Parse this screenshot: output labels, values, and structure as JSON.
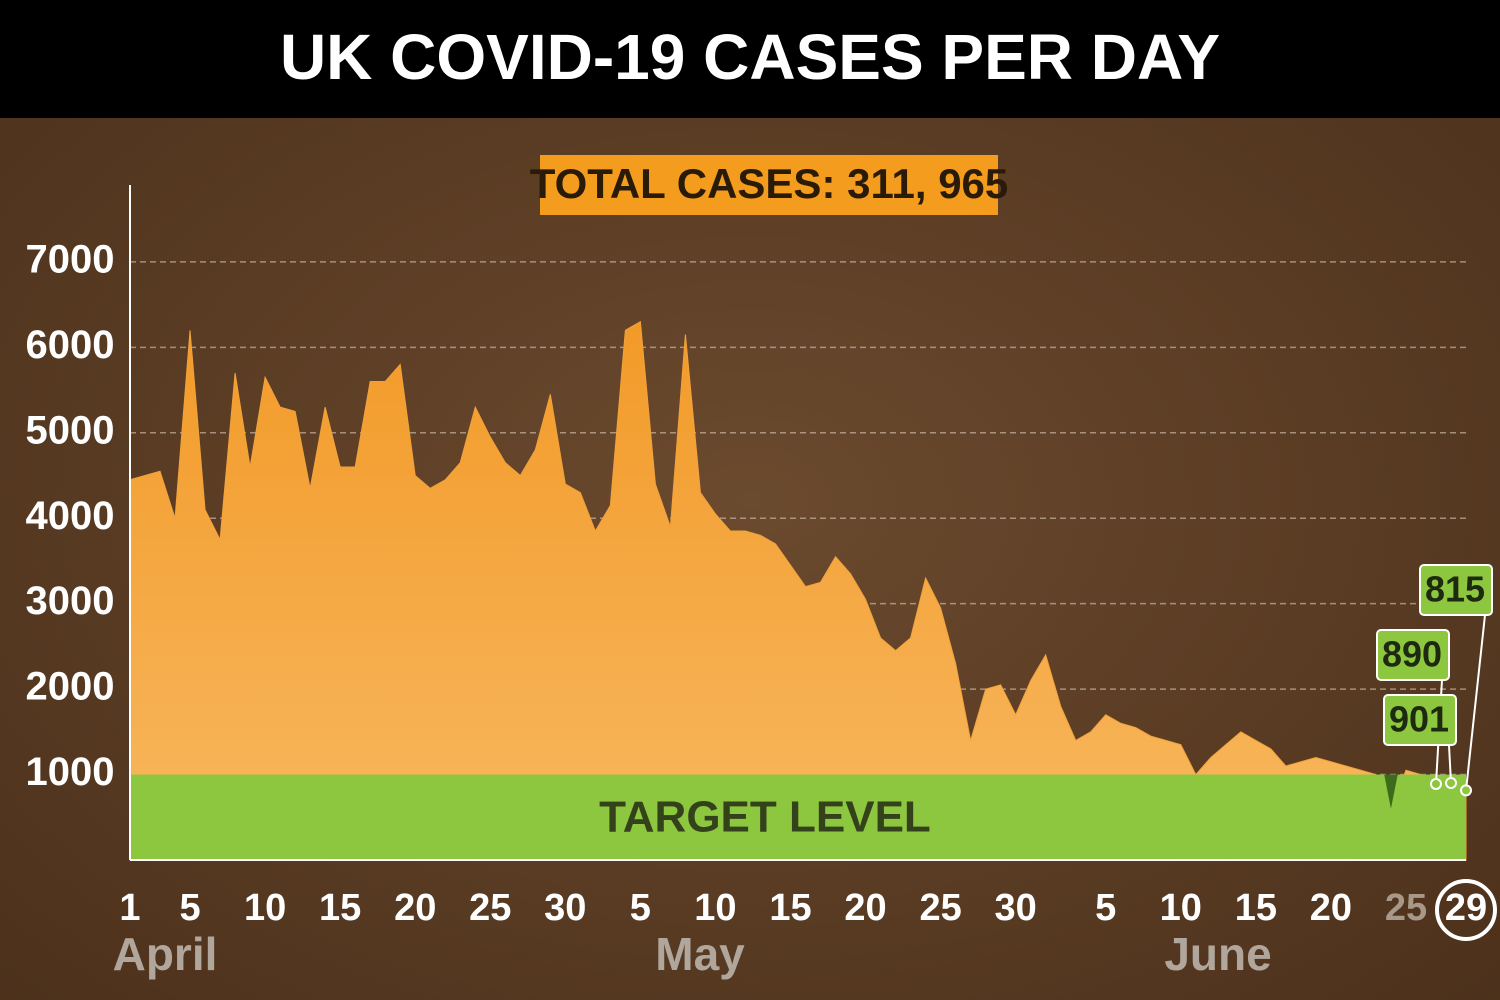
{
  "chart_data": {
    "type": "area",
    "title": "UK COVID-19 CASES PER DAY",
    "subtitle": "TOTAL CASES: 311, 965",
    "target_label": "TARGET LEVEL",
    "target": 1000,
    "months": [
      "April",
      "May",
      "June"
    ],
    "categories": [
      "1",
      null,
      null,
      null,
      "5",
      null,
      null,
      null,
      null,
      "10",
      null,
      null,
      null,
      null,
      "15",
      null,
      null,
      null,
      null,
      "20",
      null,
      null,
      null,
      null,
      "25",
      null,
      null,
      null,
      null,
      "30",
      null,
      null,
      null,
      null,
      "5",
      null,
      null,
      null,
      null,
      "10",
      null,
      null,
      null,
      null,
      "15",
      null,
      null,
      null,
      null,
      "20",
      null,
      null,
      null,
      null,
      "25",
      null,
      null,
      null,
      null,
      "30",
      null,
      null,
      null,
      null,
      null,
      "5",
      null,
      null,
      null,
      null,
      "10",
      null,
      null,
      null,
      null,
      "15",
      null,
      null,
      null,
      null,
      "20",
      null,
      null,
      null,
      null,
      "25",
      null,
      null,
      null,
      "29"
    ],
    "series": [
      {
        "name": "Cases",
        "color": "#f2a23a",
        "values": [
          4450,
          4500,
          4550,
          4000,
          6200,
          4100,
          3750,
          5700,
          4600,
          5650,
          5300,
          5250,
          4350,
          5300,
          4600,
          4600,
          5600,
          5600,
          5800,
          4500,
          4350,
          4450,
          4650,
          5300,
          4950,
          4650,
          4500,
          4800,
          5450,
          4400,
          4300,
          3850,
          4150,
          6200,
          6300,
          4400,
          3900,
          6150,
          4300,
          4050,
          3850,
          3850,
          3800,
          3700,
          3450,
          3200,
          3250,
          3550,
          3350,
          3050,
          2600,
          2450,
          2600,
          3300,
          2950,
          2300,
          1400,
          2000,
          2050,
          1700,
          2100,
          2400,
          1800,
          1400,
          1500,
          1700,
          1600,
          1550,
          1450,
          1400,
          1350,
          1000,
          1200,
          1350,
          1500,
          1400,
          1300,
          1100,
          1150,
          1200,
          1150,
          1100,
          1050,
          1000,
          600,
          1050,
          1000,
          890,
          901,
          815
        ]
      }
    ],
    "ylim": [
      0,
      7900
    ],
    "yticks": [
      1000,
      2000,
      3000,
      4000,
      5000,
      6000,
      7000
    ],
    "grid": true
  }
}
